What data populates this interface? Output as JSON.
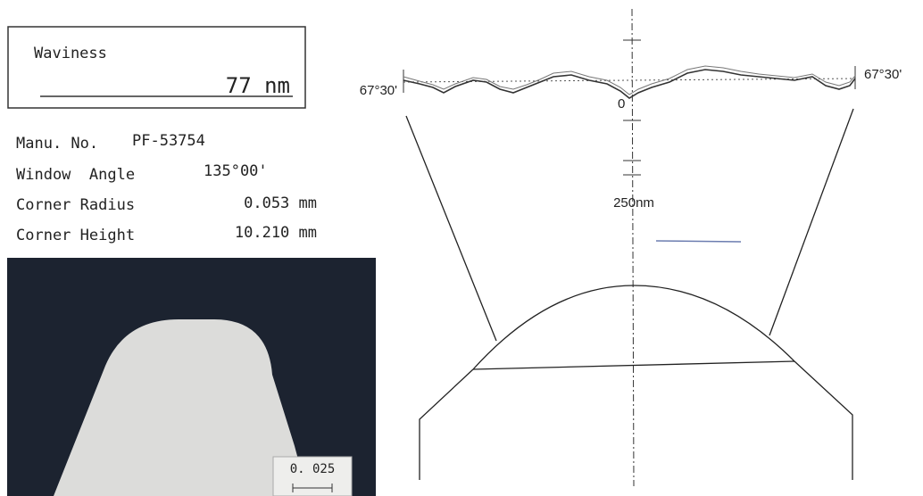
{
  "report": {
    "waviness": {
      "label": "Waviness",
      "value": "77 nm"
    },
    "specs": [
      {
        "label": "Manu. No.",
        "value": "PF-53754"
      },
      {
        "label": "Window  Angle",
        "value": "135°00'"
      },
      {
        "label": "Corner Radius",
        "value": "0.053 mm"
      },
      {
        "label": "Corner Height",
        "value": "10.210 mm"
      }
    ],
    "photo_scale": "0. 025",
    "diagram": {
      "left_angle": "67°30'",
      "right_angle": "67°30'",
      "zero_label": "0",
      "scale_label": "250nm"
    }
  }
}
